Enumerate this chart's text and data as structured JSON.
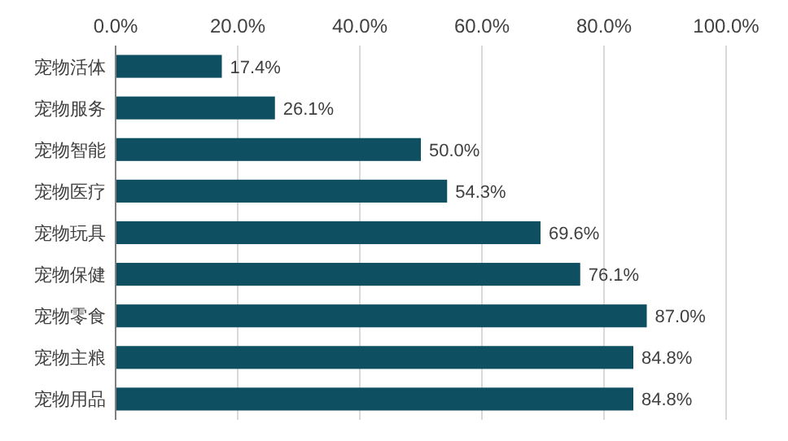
{
  "chart_data": {
    "type": "bar",
    "orientation": "horizontal",
    "categories": [
      "宠物活体",
      "宠物服务",
      "宠物智能",
      "宠物医疗",
      "宠物玩具",
      "宠物保健",
      "宠物零食",
      "宠物主粮",
      "宠物用品"
    ],
    "values": [
      17.4,
      26.1,
      50.0,
      54.3,
      69.6,
      76.1,
      87.0,
      84.8,
      84.8
    ],
    "value_labels": [
      "17.4%",
      "26.1%",
      "50.0%",
      "54.3%",
      "69.6%",
      "76.1%",
      "87.0%",
      "84.8%",
      "84.8%"
    ],
    "color": "#0e4f62",
    "xlim": [
      0,
      100
    ],
    "xticks": [
      {
        "value": 0,
        "label": "0.0%"
      },
      {
        "value": 20,
        "label": "20.0%"
      },
      {
        "value": 40,
        "label": "40.0%"
      },
      {
        "value": 60,
        "label": "60.0%"
      },
      {
        "value": 80,
        "label": "80.0%"
      },
      {
        "value": 100,
        "label": "100.0%"
      }
    ],
    "grid": "x"
  }
}
